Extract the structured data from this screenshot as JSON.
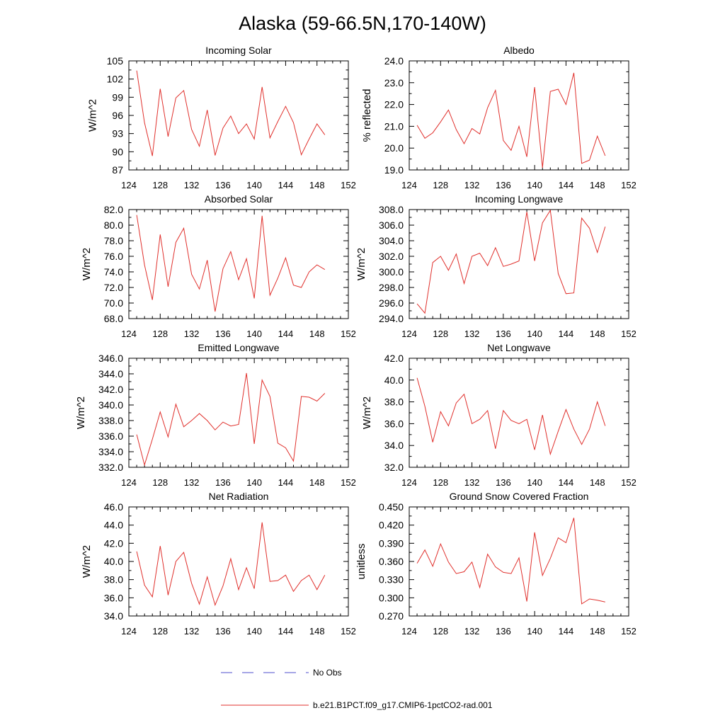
{
  "figure": {
    "title": "Alaska (59-66.5N,170-140W)",
    "legend": {
      "entries": [
        {
          "label": "No Obs",
          "color": "#4d4dcc",
          "style": "dashed"
        },
        {
          "label": "b.e21.B1PCT.f09_g17.CMIP6-1pctCO2-rad.001",
          "color": "#e0302c",
          "style": "solid"
        }
      ]
    }
  },
  "chart_data": [
    {
      "type": "line",
      "title": "Incoming Solar",
      "ylabel": "W/m^2",
      "xlabel": "",
      "xlim": [
        124,
        152
      ],
      "ylim": [
        87,
        105
      ],
      "xticks": [
        124,
        128,
        132,
        136,
        140,
        144,
        148,
        152
      ],
      "xtick_labels": [
        "124",
        "128",
        "132",
        "136",
        "140",
        "144",
        "148",
        "152"
      ],
      "yticks": [
        87,
        90,
        93,
        96,
        99,
        102,
        105
      ],
      "ytick_labels": [
        "87",
        "90",
        "93",
        "96",
        "99",
        "102",
        "105"
      ],
      "grid": false,
      "x": [
        125,
        126,
        127,
        128,
        129,
        130,
        131,
        132,
        133,
        134,
        135,
        136,
        137,
        138,
        139,
        140,
        141,
        142,
        143,
        144,
        145,
        146,
        147,
        148,
        149
      ],
      "series": [
        {
          "name": "b.e21.B1PCT.f09_g17.CMIP6-1pctCO2-rad.001",
          "color": "#e0302c",
          "values": [
            103.4,
            94.8,
            89.3,
            100.4,
            92.5,
            98.9,
            100.1,
            93.7,
            90.9,
            96.9,
            89.4,
            93.9,
            95.9,
            93.0,
            94.6,
            92.1,
            100.7,
            92.3,
            95.0,
            97.5,
            94.8,
            89.5,
            92.1,
            94.6,
            92.8
          ]
        }
      ]
    },
    {
      "type": "line",
      "title": "Albedo",
      "ylabel": "% reflected",
      "xlabel": "",
      "xlim": [
        124,
        152
      ],
      "ylim": [
        19.0,
        24.0
      ],
      "xticks": [
        124,
        128,
        132,
        136,
        140,
        144,
        148,
        152
      ],
      "xtick_labels": [
        "124",
        "128",
        "132",
        "136",
        "140",
        "144",
        "148",
        "152"
      ],
      "yticks": [
        19.0,
        20.0,
        21.0,
        22.0,
        23.0,
        24.0
      ],
      "ytick_labels": [
        "19.0",
        "20.0",
        "21.0",
        "22.0",
        "23.0",
        "24.0"
      ],
      "grid": false,
      "x": [
        125,
        126,
        127,
        128,
        129,
        130,
        131,
        132,
        133,
        134,
        135,
        136,
        137,
        138,
        139,
        140,
        141,
        142,
        143,
        144,
        145,
        146,
        147,
        148,
        149
      ],
      "series": [
        {
          "name": "b.e21.B1PCT.f09_g17.CMIP6-1pctCO2-rad.001",
          "color": "#e0302c",
          "values": [
            21.05,
            20.45,
            20.7,
            21.2,
            21.75,
            20.85,
            20.2,
            20.9,
            20.65,
            21.85,
            22.65,
            20.35,
            19.9,
            21.0,
            19.6,
            22.8,
            19.1,
            22.6,
            22.7,
            22.0,
            23.45,
            19.3,
            19.45,
            20.55,
            19.65
          ]
        }
      ]
    },
    {
      "type": "line",
      "title": "Absorbed Solar",
      "ylabel": "W/m^2",
      "xlabel": "",
      "xlim": [
        124,
        152
      ],
      "ylim": [
        68.0,
        82.0
      ],
      "xticks": [
        124,
        128,
        132,
        136,
        140,
        144,
        148,
        152
      ],
      "xtick_labels": [
        "124",
        "128",
        "132",
        "136",
        "140",
        "144",
        "148",
        "152"
      ],
      "yticks": [
        68.0,
        70.0,
        72.0,
        74.0,
        76.0,
        78.0,
        80.0,
        82.0
      ],
      "ytick_labels": [
        "68.0",
        "70.0",
        "72.0",
        "74.0",
        "76.0",
        "78.0",
        "80.0",
        "82.0"
      ],
      "grid": false,
      "x": [
        125,
        126,
        127,
        128,
        129,
        130,
        131,
        132,
        133,
        134,
        135,
        136,
        137,
        138,
        139,
        140,
        141,
        142,
        143,
        144,
        145,
        146,
        147,
        148,
        149
      ],
      "series": [
        {
          "name": "b.e21.B1PCT.f09_g17.CMIP6-1pctCO2-rad.001",
          "color": "#e0302c",
          "values": [
            81.3,
            74.9,
            70.4,
            78.8,
            72.1,
            77.8,
            79.6,
            73.7,
            71.8,
            75.5,
            68.9,
            74.4,
            76.6,
            73.0,
            75.7,
            70.6,
            81.2,
            71.0,
            73.2,
            75.8,
            72.3,
            72.0,
            74.0,
            74.9,
            74.3
          ]
        }
      ]
    },
    {
      "type": "line",
      "title": "Incoming Longwave",
      "ylabel": "W/m^2",
      "xlabel": "",
      "xlim": [
        124,
        152
      ],
      "ylim": [
        294.0,
        308.0
      ],
      "xticks": [
        124,
        128,
        132,
        136,
        140,
        144,
        148,
        152
      ],
      "xtick_labels": [
        "124",
        "128",
        "132",
        "136",
        "140",
        "144",
        "148",
        "152"
      ],
      "yticks": [
        294.0,
        296.0,
        298.0,
        300.0,
        302.0,
        304.0,
        306.0,
        308.0
      ],
      "ytick_labels": [
        "294.0",
        "296.0",
        "298.0",
        "300.0",
        "302.0",
        "304.0",
        "306.0",
        "308.0"
      ],
      "grid": false,
      "x": [
        125,
        126,
        127,
        128,
        129,
        130,
        131,
        132,
        133,
        134,
        135,
        136,
        137,
        138,
        139,
        140,
        141,
        142,
        143,
        144,
        145,
        146,
        147,
        148,
        149
      ],
      "series": [
        {
          "name": "b.e21.B1PCT.f09_g17.CMIP6-1pctCO2-rad.001",
          "color": "#e0302c",
          "values": [
            295.9,
            294.7,
            301.2,
            302.0,
            300.2,
            302.3,
            298.5,
            302.0,
            302.4,
            300.8,
            303.1,
            300.7,
            301.0,
            301.4,
            307.7,
            301.4,
            306.3,
            307.9,
            299.8,
            297.2,
            297.3,
            306.9,
            305.6,
            302.5,
            305.8
          ]
        }
      ]
    },
    {
      "type": "line",
      "title": "Emitted Longwave",
      "ylabel": "W/m^2",
      "xlabel": "",
      "xlim": [
        124,
        152
      ],
      "ylim": [
        332.0,
        346.0
      ],
      "xticks": [
        124,
        128,
        132,
        136,
        140,
        144,
        148,
        152
      ],
      "xtick_labels": [
        "124",
        "128",
        "132",
        "136",
        "140",
        "144",
        "148",
        "152"
      ],
      "yticks": [
        332.0,
        334.0,
        336.0,
        338.0,
        340.0,
        342.0,
        344.0,
        346.0
      ],
      "ytick_labels": [
        "332.0",
        "334.0",
        "336.0",
        "338.0",
        "340.0",
        "342.0",
        "344.0",
        "346.0"
      ],
      "grid": false,
      "x": [
        125,
        126,
        127,
        128,
        129,
        130,
        131,
        132,
        133,
        134,
        135,
        136,
        137,
        138,
        139,
        140,
        141,
        142,
        143,
        144,
        145,
        146,
        147,
        148,
        149
      ],
      "series": [
        {
          "name": "b.e21.B1PCT.f09_g17.CMIP6-1pctCO2-rad.001",
          "color": "#e0302c",
          "values": [
            336.2,
            332.3,
            335.6,
            339.1,
            335.9,
            340.1,
            337.2,
            338.0,
            338.9,
            338.0,
            336.8,
            337.8,
            337.3,
            337.5,
            344.1,
            335.0,
            343.2,
            341.1,
            335.1,
            334.5,
            332.8,
            341.1,
            341.0,
            340.5,
            341.5
          ]
        }
      ]
    },
    {
      "type": "line",
      "title": "Net Longwave",
      "ylabel": "W/m^2",
      "xlabel": "",
      "xlim": [
        124,
        152
      ],
      "ylim": [
        32.0,
        42.0
      ],
      "xticks": [
        124,
        128,
        132,
        136,
        140,
        144,
        148,
        152
      ],
      "xtick_labels": [
        "124",
        "128",
        "132",
        "136",
        "140",
        "144",
        "148",
        "152"
      ],
      "yticks": [
        32.0,
        34.0,
        36.0,
        38.0,
        40.0,
        42.0
      ],
      "ytick_labels": [
        "32.0",
        "34.0",
        "36.0",
        "38.0",
        "40.0",
        "42.0"
      ],
      "grid": false,
      "x": [
        125,
        126,
        127,
        128,
        129,
        130,
        131,
        132,
        133,
        134,
        135,
        136,
        137,
        138,
        139,
        140,
        141,
        142,
        143,
        144,
        145,
        146,
        147,
        148,
        149
      ],
      "series": [
        {
          "name": "b.e21.B1PCT.f09_g17.CMIP6-1pctCO2-rad.001",
          "color": "#e0302c",
          "values": [
            40.2,
            37.6,
            34.3,
            37.1,
            35.8,
            37.9,
            38.7,
            36.0,
            36.4,
            37.2,
            33.7,
            37.2,
            36.3,
            36.0,
            36.4,
            33.6,
            36.8,
            33.2,
            35.3,
            37.3,
            35.5,
            34.1,
            35.5,
            38.0,
            35.8
          ]
        }
      ]
    },
    {
      "type": "line",
      "title": "Net Radiation",
      "ylabel": "W/m^2",
      "xlabel": "",
      "xlim": [
        124,
        152
      ],
      "ylim": [
        34.0,
        46.0
      ],
      "xticks": [
        124,
        128,
        132,
        136,
        140,
        144,
        148,
        152
      ],
      "xtick_labels": [
        "124",
        "128",
        "132",
        "136",
        "140",
        "144",
        "148",
        "152"
      ],
      "yticks": [
        34.0,
        36.0,
        38.0,
        40.0,
        42.0,
        44.0,
        46.0
      ],
      "ytick_labels": [
        "34.0",
        "36.0",
        "38.0",
        "40.0",
        "42.0",
        "44.0",
        "46.0"
      ],
      "grid": false,
      "x": [
        125,
        126,
        127,
        128,
        129,
        130,
        131,
        132,
        133,
        134,
        135,
        136,
        137,
        138,
        139,
        140,
        141,
        142,
        143,
        144,
        145,
        146,
        147,
        148,
        149
      ],
      "series": [
        {
          "name": "b.e21.B1PCT.f09_g17.CMIP6-1pctCO2-rad.001",
          "color": "#e0302c",
          "values": [
            41.1,
            37.4,
            36.1,
            41.7,
            36.3,
            40.0,
            41.0,
            37.6,
            35.3,
            38.3,
            35.2,
            37.3,
            40.3,
            36.9,
            39.3,
            37.0,
            44.3,
            37.8,
            37.9,
            38.5,
            36.7,
            37.9,
            38.5,
            36.9,
            38.5
          ]
        }
      ]
    },
    {
      "type": "line",
      "title": "Ground Snow Covered Fraction",
      "ylabel": "unitless",
      "xlabel": "",
      "xlim": [
        124,
        152
      ],
      "ylim": [
        0.27,
        0.45
      ],
      "xticks": [
        124,
        128,
        132,
        136,
        140,
        144,
        148,
        152
      ],
      "xtick_labels": [
        "124",
        "128",
        "132",
        "136",
        "140",
        "144",
        "148",
        "152"
      ],
      "yticks": [
        0.27,
        0.3,
        0.33,
        0.36,
        0.39,
        0.42,
        0.45
      ],
      "ytick_labels": [
        "0.270",
        "0.300",
        "0.330",
        "0.360",
        "0.390",
        "0.420",
        "0.450"
      ],
      "grid": false,
      "x": [
        125,
        126,
        127,
        128,
        129,
        130,
        131,
        132,
        133,
        134,
        135,
        136,
        137,
        138,
        139,
        140,
        141,
        142,
        143,
        144,
        145,
        146,
        147,
        148,
        149
      ],
      "series": [
        {
          "name": "b.e21.B1PCT.f09_g17.CMIP6-1pctCO2-rad.001",
          "color": "#e0302c",
          "values": [
            0.357,
            0.379,
            0.352,
            0.389,
            0.359,
            0.34,
            0.343,
            0.359,
            0.317,
            0.372,
            0.351,
            0.342,
            0.34,
            0.366,
            0.294,
            0.408,
            0.337,
            0.365,
            0.399,
            0.391,
            0.432,
            0.29,
            0.298,
            0.296,
            0.293
          ]
        }
      ]
    }
  ]
}
